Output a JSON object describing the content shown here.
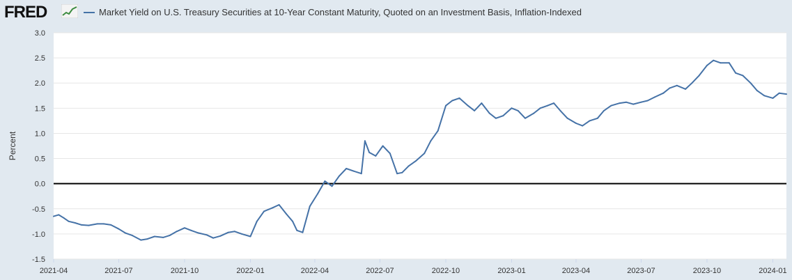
{
  "logo": {
    "text": "FRED",
    "icon": "trend-line-icon"
  },
  "colors": {
    "series": "#4572a7",
    "zero_line": "#000000",
    "plot_bg": "#ffffff",
    "page_bg": "#e1e9f0",
    "grid": "#e6e6e6",
    "logo_accent": "#3b8b3f"
  },
  "chart_data": {
    "type": "line",
    "title": "",
    "ylabel": "Percent",
    "xlabel": "",
    "ylim": [
      -1.5,
      3.0
    ],
    "yticks": [
      "3.0",
      "2.5",
      "2.0",
      "1.5",
      "1.0",
      "0.5",
      "0.0",
      "-0.5",
      "-1.0",
      "-1.5"
    ],
    "xticks": [
      "2021-04",
      "2021-07",
      "2021-10",
      "2022-01",
      "2022-04",
      "2022-07",
      "2022-10",
      "2023-01",
      "2023-04",
      "2023-07",
      "2023-10",
      "2024-01"
    ],
    "grid": true,
    "legend_position": "top-left",
    "series": [
      {
        "name": "Market Yield on U.S. Treasury Securities at 10-Year Constant Maturity, Quoted on an Investment Basis, Inflation-Indexed",
        "x": [
          "2021-04-01",
          "2021-04-08",
          "2021-04-15",
          "2021-04-22",
          "2021-05-01",
          "2021-05-10",
          "2021-05-20",
          "2021-06-01",
          "2021-06-10",
          "2021-06-20",
          "2021-07-01",
          "2021-07-10",
          "2021-07-20",
          "2021-08-01",
          "2021-08-10",
          "2021-08-20",
          "2021-09-01",
          "2021-09-10",
          "2021-09-20",
          "2021-10-01",
          "2021-10-10",
          "2021-10-20",
          "2021-11-01",
          "2021-11-10",
          "2021-11-20",
          "2021-12-01",
          "2021-12-10",
          "2021-12-20",
          "2022-01-01",
          "2022-01-10",
          "2022-01-20",
          "2022-02-01",
          "2022-02-10",
          "2022-02-20",
          "2022-03-01",
          "2022-03-07",
          "2022-03-15",
          "2022-03-25",
          "2022-04-05",
          "2022-04-15",
          "2022-04-25",
          "2022-05-05",
          "2022-05-15",
          "2022-05-25",
          "2022-06-05",
          "2022-06-10",
          "2022-06-16",
          "2022-06-25",
          "2022-07-05",
          "2022-07-15",
          "2022-07-25",
          "2022-08-01",
          "2022-08-10",
          "2022-08-20",
          "2022-09-01",
          "2022-09-10",
          "2022-09-20",
          "2022-10-01",
          "2022-10-10",
          "2022-10-20",
          "2022-11-01",
          "2022-11-10",
          "2022-11-20",
          "2022-12-01",
          "2022-12-10",
          "2022-12-20",
          "2023-01-01",
          "2023-01-10",
          "2023-01-20",
          "2023-02-01",
          "2023-02-10",
          "2023-02-20",
          "2023-03-01",
          "2023-03-10",
          "2023-03-20",
          "2023-04-01",
          "2023-04-10",
          "2023-04-20",
          "2023-05-01",
          "2023-05-10",
          "2023-05-20",
          "2023-06-01",
          "2023-06-10",
          "2023-06-20",
          "2023-07-01",
          "2023-07-10",
          "2023-07-20",
          "2023-08-01",
          "2023-08-10",
          "2023-08-20",
          "2023-09-01",
          "2023-09-10",
          "2023-09-20",
          "2023-10-01",
          "2023-10-10",
          "2023-10-20",
          "2023-11-01",
          "2023-11-10",
          "2023-11-20",
          "2023-12-01",
          "2023-12-10",
          "2023-12-20",
          "2024-01-01",
          "2024-01-10",
          "2024-01-20"
        ],
        "values": [
          -0.65,
          -0.62,
          -0.68,
          -0.75,
          -0.78,
          -0.82,
          -0.83,
          -0.8,
          -0.8,
          -0.82,
          -0.9,
          -0.98,
          -1.03,
          -1.12,
          -1.1,
          -1.05,
          -1.07,
          -1.03,
          -0.95,
          -0.88,
          -0.93,
          -0.98,
          -1.02,
          -1.08,
          -1.04,
          -0.97,
          -0.95,
          -1.0,
          -1.05,
          -0.75,
          -0.55,
          -0.48,
          -0.42,
          -0.6,
          -0.75,
          -0.93,
          -0.97,
          -0.45,
          -0.2,
          0.05,
          -0.05,
          0.15,
          0.3,
          0.25,
          0.2,
          0.85,
          0.62,
          0.55,
          0.75,
          0.6,
          0.2,
          0.22,
          0.35,
          0.45,
          0.6,
          0.85,
          1.05,
          1.55,
          1.65,
          1.7,
          1.55,
          1.45,
          1.6,
          1.4,
          1.3,
          1.35,
          1.5,
          1.45,
          1.3,
          1.4,
          1.5,
          1.55,
          1.6,
          1.45,
          1.3,
          1.2,
          1.15,
          1.25,
          1.3,
          1.45,
          1.55,
          1.6,
          1.62,
          1.58,
          1.62,
          1.65,
          1.72,
          1.8,
          1.9,
          1.95,
          1.88,
          2.0,
          2.15,
          2.35,
          2.45,
          2.4,
          2.4,
          2.2,
          2.15,
          2.0,
          1.85,
          1.75,
          1.7,
          1.8,
          1.78
        ]
      }
    ]
  }
}
